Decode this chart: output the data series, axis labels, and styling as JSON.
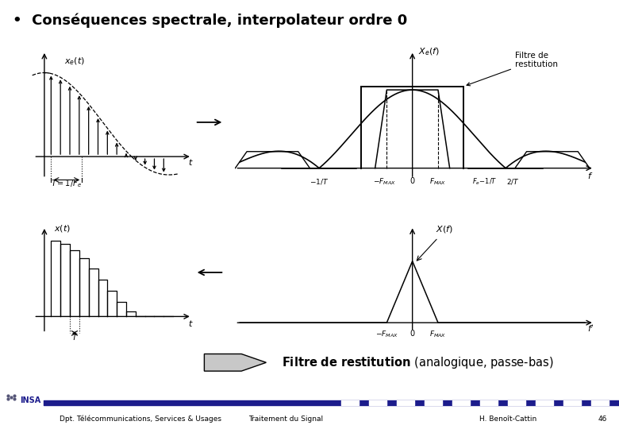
{
  "title": "•  Conséquences spectrale, interpolateur ordre 0",
  "title_fontsize": 13,
  "background_color": "#ffffff",
  "footer_left": "Dpt. Télécommunications, Services & Usages",
  "footer_center": "Traitement du Signal",
  "footer_right": "H. Benoît-Cattin",
  "footer_page": "46",
  "filtre_label": "Filtre de\nrestitution"
}
